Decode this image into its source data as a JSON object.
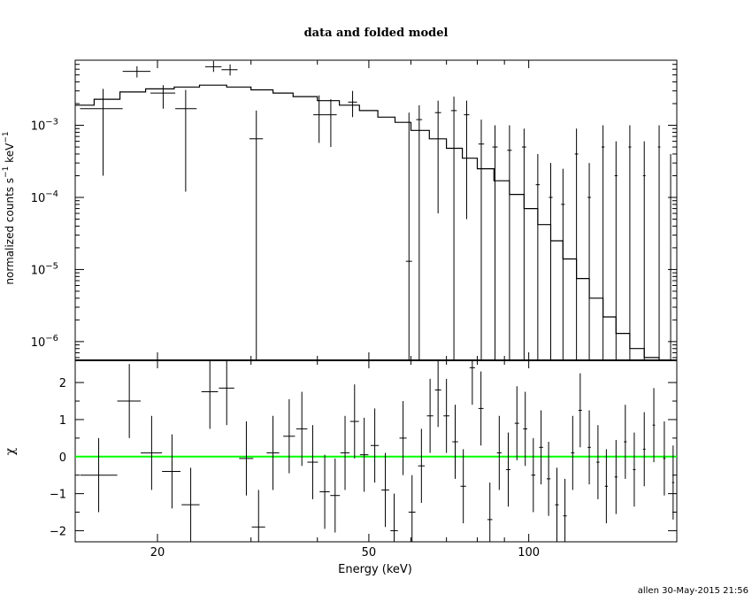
{
  "title": "data and folded model",
  "footer": "allen 30-May-2015 21:56",
  "chart_data": [
    {
      "type": "scatter",
      "subtype": "spectrum-with-errorbars-and-step-model",
      "title": "data and folded model",
      "ylabel": "normalized counts s^-1 keV^-1",
      "ylabel_parts": {
        "main": "normalized counts s",
        "exp1": "−1",
        "unit": " keV",
        "exp2": "−1"
      },
      "xlabel": "Energy (keV)",
      "xscale": "log",
      "yscale": "log",
      "xlim": [
        14,
        190
      ],
      "ylim": [
        5.5e-07,
        0.008
      ],
      "x_ticklabels": [
        {
          "value": 20,
          "label": "20"
        },
        {
          "value": 50,
          "label": "50"
        },
        {
          "value": 100,
          "label": "100"
        }
      ],
      "y_ticklabels": [
        {
          "value": 0.001,
          "base": "10",
          "exp": "−3"
        },
        {
          "value": 0.0001,
          "base": "10",
          "exp": "−4"
        },
        {
          "value": 1e-05,
          "base": "10",
          "exp": "−5"
        },
        {
          "value": 1e-06,
          "base": "10",
          "exp": "−6"
        }
      ],
      "data_color": "#000000",
      "model_color": "#000000",
      "data": [
        {
          "x": 15.8,
          "xlo": 14.3,
          "xhi": 17.2,
          "y": 0.0017,
          "ylo": 0.0002,
          "yhi": 0.0032
        },
        {
          "x": 18.3,
          "xlo": 17.2,
          "xhi": 19.4,
          "y": 0.0056,
          "ylo": 0.0046,
          "yhi": 0.0066
        },
        {
          "x": 20.5,
          "xlo": 19.4,
          "xhi": 21.6,
          "y": 0.0028,
          "ylo": 0.0017,
          "yhi": 0.0036
        },
        {
          "x": 22.6,
          "xlo": 21.6,
          "xhi": 23.7,
          "y": 0.0017,
          "ylo": 0.00012,
          "yhi": 0.0031
        },
        {
          "x": 25.5,
          "xlo": 24.6,
          "xhi": 26.4,
          "y": 0.0065,
          "ylo": 0.0055,
          "yhi": 0.0078
        },
        {
          "x": 27.4,
          "xlo": 26.4,
          "xhi": 28.3,
          "y": 0.0059,
          "ylo": 0.0049,
          "yhi": 0.007
        },
        {
          "x": 30.7,
          "xlo": 29.8,
          "xhi": 31.6,
          "y": 0.00065,
          "ylo": 5.5e-07,
          "yhi": 0.0016
        },
        {
          "x": 40.3,
          "xlo": 39.3,
          "xhi": 41.3,
          "y": 0.0014,
          "ylo": 0.00057,
          "yhi": 0.0026
        },
        {
          "x": 42.4,
          "xlo": 41.3,
          "xhi": 43.5,
          "y": 0.0014,
          "ylo": 0.0005,
          "yhi": 0.0023
        },
        {
          "x": 46.6,
          "xlo": 45.7,
          "xhi": 47.5,
          "y": 0.0021,
          "ylo": 0.0013,
          "yhi": 0.003
        },
        {
          "x": 59.5,
          "xlo": 58.7,
          "xhi": 60.3,
          "y": 1.3e-05,
          "ylo": 5.5e-07,
          "yhi": 0.0015
        },
        {
          "x": 62.2,
          "xlo": 61.4,
          "xhi": 63,
          "y": 0.0012,
          "ylo": 5.5e-07,
          "yhi": 0.0019
        },
        {
          "x": 67.5,
          "xlo": 66.6,
          "xhi": 68.4,
          "y": 0.0015,
          "ylo": 6e-05,
          "yhi": 0.0022
        },
        {
          "x": 72.3,
          "xlo": 71.4,
          "xhi": 73.2,
          "y": 0.0016,
          "ylo": 5.5e-07,
          "yhi": 0.0025
        },
        {
          "x": 76.4,
          "xlo": 75.5,
          "xhi": 77.3,
          "y": 0.0014,
          "ylo": 5e-05,
          "yhi": 0.0022
        },
        {
          "x": 81.4,
          "xlo": 80.4,
          "xhi": 82.4,
          "y": 0.00055,
          "ylo": 5.5e-07,
          "yhi": 0.0012
        },
        {
          "x": 86.4,
          "xlo": 85.4,
          "xhi": 87.4,
          "y": 0.0005,
          "ylo": 5.5e-07,
          "yhi": 0.001
        },
        {
          "x": 92,
          "xlo": 91.1,
          "xhi": 92.9,
          "y": 0.00045,
          "ylo": 5.5e-07,
          "yhi": 0.001
        },
        {
          "x": 98,
          "xlo": 97.1,
          "xhi": 98.9,
          "y": 0.0005,
          "ylo": 5.5e-07,
          "yhi": 0.0009
        },
        {
          "x": 104,
          "xlo": 103.1,
          "xhi": 104.9,
          "y": 0.00015,
          "ylo": 5.5e-07,
          "yhi": 0.0004
        },
        {
          "x": 110,
          "xlo": 109.1,
          "xhi": 110.9,
          "y": 0.0001,
          "ylo": 5.5e-07,
          "yhi": 0.0003
        },
        {
          "x": 116,
          "xlo": 115.1,
          "xhi": 116.9,
          "y": 8e-05,
          "ylo": 5.5e-07,
          "yhi": 0.00025
        },
        {
          "x": 123,
          "xlo": 122.1,
          "xhi": 123.9,
          "y": 0.0004,
          "ylo": 5.5e-07,
          "yhi": 0.0009
        },
        {
          "x": 130,
          "xlo": 129.1,
          "xhi": 130.9,
          "y": 0.0001,
          "ylo": 5.5e-07,
          "yhi": 0.0003
        },
        {
          "x": 138,
          "xlo": 137.1,
          "xhi": 138.9,
          "y": 0.0005,
          "ylo": 5.5e-07,
          "yhi": 0.001
        },
        {
          "x": 146,
          "xlo": 145.1,
          "xhi": 146.9,
          "y": 0.0002,
          "ylo": 5.5e-07,
          "yhi": 0.0006
        },
        {
          "x": 155,
          "xlo": 154.1,
          "xhi": 155.9,
          "y": 0.0005,
          "ylo": 5.5e-07,
          "yhi": 0.001
        },
        {
          "x": 165,
          "xlo": 164.1,
          "xhi": 165.9,
          "y": 0.0002,
          "ylo": 5.5e-07,
          "yhi": 0.0006
        },
        {
          "x": 176,
          "xlo": 175.1,
          "xhi": 176.9,
          "y": 0.0005,
          "ylo": 5.5e-07,
          "yhi": 0.001
        },
        {
          "x": 185,
          "xlo": 184.1,
          "xhi": 185.9,
          "y": 0.0001,
          "ylo": 5.5e-07,
          "yhi": 0.0004
        }
      ],
      "model_steps": [
        {
          "x0": 14,
          "x1": 15.2,
          "y": 0.0019
        },
        {
          "x0": 15.2,
          "x1": 17,
          "y": 0.0023
        },
        {
          "x0": 17,
          "x1": 19,
          "y": 0.0029
        },
        {
          "x0": 19,
          "x1": 21.5,
          "y": 0.0032
        },
        {
          "x0": 21.5,
          "x1": 24,
          "y": 0.0034
        },
        {
          "x0": 24,
          "x1": 27,
          "y": 0.0036
        },
        {
          "x0": 27,
          "x1": 30,
          "y": 0.0034
        },
        {
          "x0": 30,
          "x1": 33,
          "y": 0.0031
        },
        {
          "x0": 33,
          "x1": 36,
          "y": 0.0028
        },
        {
          "x0": 36,
          "x1": 40,
          "y": 0.0025
        },
        {
          "x0": 40,
          "x1": 44,
          "y": 0.0022
        },
        {
          "x0": 44,
          "x1": 48,
          "y": 0.0019
        },
        {
          "x0": 48,
          "x1": 52,
          "y": 0.0016
        },
        {
          "x0": 52,
          "x1": 56,
          "y": 0.0013
        },
        {
          "x0": 56,
          "x1": 60,
          "y": 0.0011
        },
        {
          "x0": 60,
          "x1": 65,
          "y": 0.00085
        },
        {
          "x0": 65,
          "x1": 70,
          "y": 0.00065
        },
        {
          "x0": 70,
          "x1": 75,
          "y": 0.00048
        },
        {
          "x0": 75,
          "x1": 80,
          "y": 0.00035
        },
        {
          "x0": 80,
          "x1": 86,
          "y": 0.00025
        },
        {
          "x0": 86,
          "x1": 92,
          "y": 0.00017
        },
        {
          "x0": 92,
          "x1": 98,
          "y": 0.00011
        },
        {
          "x0": 98,
          "x1": 104,
          "y": 7e-05
        },
        {
          "x0": 104,
          "x1": 110,
          "y": 4.2e-05
        },
        {
          "x0": 110,
          "x1": 116,
          "y": 2.5e-05
        },
        {
          "x0": 116,
          "x1": 123,
          "y": 1.4e-05
        },
        {
          "x0": 123,
          "x1": 130,
          "y": 7.5e-06
        },
        {
          "x0": 130,
          "x1": 138,
          "y": 4e-06
        },
        {
          "x0": 138,
          "x1": 146,
          "y": 2.2e-06
        },
        {
          "x0": 146,
          "x1": 155,
          "y": 1.3e-06
        },
        {
          "x0": 155,
          "x1": 165,
          "y": 8e-07
        },
        {
          "x0": 165,
          "x1": 176,
          "y": 6e-07
        },
        {
          "x0": 176,
          "x1": 190,
          "y": 5.5e-07
        }
      ]
    },
    {
      "type": "scatter",
      "subtype": "residuals-with-errorbars",
      "ylabel": "χ",
      "xlabel": "Energy (keV)",
      "xscale": "log",
      "xlim": [
        14,
        190
      ],
      "ylim": [
        -2.3,
        2.6
      ],
      "y_ticklabels": [
        {
          "value": 2,
          "label": "2"
        },
        {
          "value": 1,
          "label": "1"
        },
        {
          "value": 0,
          "label": "0"
        },
        {
          "value": -1,
          "label": "−1"
        },
        {
          "value": -2,
          "label": "−2"
        }
      ],
      "x_ticklabels": [
        {
          "value": 20,
          "label": "20"
        },
        {
          "value": 50,
          "label": "50"
        },
        {
          "value": 100,
          "label": "100"
        }
      ],
      "zero_line": {
        "value": 0,
        "color": "#00ff00"
      },
      "data_color": "#000000",
      "data": [
        {
          "x": 15.5,
          "xlo": 14.3,
          "xhi": 16.8,
          "y": -0.5,
          "ylo": -1.5,
          "yhi": 0.5
        },
        {
          "x": 17.7,
          "xlo": 16.8,
          "xhi": 18.6,
          "y": 1.5,
          "ylo": 0.5,
          "yhi": 2.5
        },
        {
          "x": 19.5,
          "xlo": 18.6,
          "xhi": 20.4,
          "y": 0.1,
          "ylo": -0.9,
          "yhi": 1.1
        },
        {
          "x": 21.3,
          "xlo": 20.4,
          "xhi": 22.1,
          "y": -0.4,
          "ylo": -1.4,
          "yhi": 0.6
        },
        {
          "x": 23.1,
          "xlo": 22.2,
          "xhi": 24,
          "y": -1.3,
          "ylo": -2.3,
          "yhi": -0.3
        },
        {
          "x": 25.1,
          "xlo": 24.2,
          "xhi": 26,
          "y": 1.75,
          "ylo": 0.75,
          "yhi": 2.6
        },
        {
          "x": 27,
          "xlo": 26.1,
          "xhi": 27.9,
          "y": 1.85,
          "ylo": 0.85,
          "yhi": 2.6
        },
        {
          "x": 29.4,
          "xlo": 28.5,
          "xhi": 30.3,
          "y": -0.05,
          "ylo": -1.05,
          "yhi": 0.95
        },
        {
          "x": 31,
          "xlo": 30.1,
          "xhi": 31.9,
          "y": -1.9,
          "ylo": -2.3,
          "yhi": -0.9
        },
        {
          "x": 33,
          "xlo": 32.1,
          "xhi": 33.9,
          "y": 0.1,
          "ylo": -0.9,
          "yhi": 1.1
        },
        {
          "x": 35.4,
          "xlo": 34.5,
          "xhi": 36.3,
          "y": 0.55,
          "ylo": -0.45,
          "yhi": 1.55
        },
        {
          "x": 37.4,
          "xlo": 36.5,
          "xhi": 38.3,
          "y": 0.75,
          "ylo": -0.25,
          "yhi": 1.75
        },
        {
          "x": 39.2,
          "xlo": 38.3,
          "xhi": 40.1,
          "y": -0.15,
          "ylo": -1.15,
          "yhi": 0.85
        },
        {
          "x": 41.3,
          "xlo": 40.4,
          "xhi": 42.2,
          "y": -0.95,
          "ylo": -1.95,
          "yhi": 0.05
        },
        {
          "x": 43.2,
          "xlo": 42.3,
          "xhi": 44.1,
          "y": -1.05,
          "ylo": -2.05,
          "yhi": -0.05
        },
        {
          "x": 45.1,
          "xlo": 44.2,
          "xhi": 46,
          "y": 0.1,
          "ylo": -0.9,
          "yhi": 1.1
        },
        {
          "x": 47,
          "xlo": 46.1,
          "xhi": 47.9,
          "y": 0.95,
          "ylo": -0.05,
          "yhi": 1.95
        },
        {
          "x": 49,
          "xlo": 48.1,
          "xhi": 49.9,
          "y": 0.05,
          "ylo": -0.95,
          "yhi": 1.05
        },
        {
          "x": 51.3,
          "xlo": 50.4,
          "xhi": 52.2,
          "y": 0.3,
          "ylo": -0.7,
          "yhi": 1.3
        },
        {
          "x": 53.7,
          "xlo": 52.8,
          "xhi": 54.6,
          "y": -0.9,
          "ylo": -1.9,
          "yhi": 0.1
        },
        {
          "x": 55.8,
          "xlo": 54.9,
          "xhi": 56.7,
          "y": -2,
          "ylo": -2.3,
          "yhi": -1
        },
        {
          "x": 58,
          "xlo": 57.1,
          "xhi": 58.9,
          "y": 0.5,
          "ylo": -0.5,
          "yhi": 1.5
        },
        {
          "x": 60.3,
          "xlo": 59.4,
          "xhi": 61.2,
          "y": -1.5,
          "ylo": -2.3,
          "yhi": -0.5
        },
        {
          "x": 62.8,
          "xlo": 61.9,
          "xhi": 63.7,
          "y": -0.25,
          "ylo": -1.25,
          "yhi": 0.75
        },
        {
          "x": 65.2,
          "xlo": 64.3,
          "xhi": 66.1,
          "y": 1.1,
          "ylo": 0.1,
          "yhi": 2.1
        },
        {
          "x": 67.5,
          "xlo": 66.6,
          "xhi": 68.4,
          "y": 1.8,
          "ylo": 0.8,
          "yhi": 2.6
        },
        {
          "x": 70,
          "xlo": 69.1,
          "xhi": 70.9,
          "y": 1.1,
          "ylo": 0.1,
          "yhi": 2.1
        },
        {
          "x": 72.7,
          "xlo": 71.8,
          "xhi": 73.6,
          "y": 0.4,
          "ylo": -0.6,
          "yhi": 1.4
        },
        {
          "x": 75.3,
          "xlo": 74.4,
          "xhi": 76.2,
          "y": -0.8,
          "ylo": -1.8,
          "yhi": 0.2
        },
        {
          "x": 78.3,
          "xlo": 77.4,
          "xhi": 79.2,
          "y": 2.4,
          "ylo": 1.4,
          "yhi": 2.6
        },
        {
          "x": 81.3,
          "xlo": 80.4,
          "xhi": 82.2,
          "y": 1.3,
          "ylo": 0.3,
          "yhi": 2.3
        },
        {
          "x": 84.5,
          "xlo": 83.6,
          "xhi": 85.4,
          "y": -1.7,
          "ylo": -2.3,
          "yhi": -0.7
        },
        {
          "x": 88,
          "xlo": 87.1,
          "xhi": 88.9,
          "y": 0.1,
          "ylo": -0.9,
          "yhi": 1.1
        },
        {
          "x": 91.5,
          "xlo": 90.6,
          "xhi": 92.4,
          "y": -0.35,
          "ylo": -1.35,
          "yhi": 0.65
        },
        {
          "x": 95,
          "xlo": 94.1,
          "xhi": 95.9,
          "y": 0.9,
          "ylo": -0.1,
          "yhi": 1.9
        },
        {
          "x": 98.5,
          "xlo": 97.6,
          "xhi": 99.4,
          "y": 0.75,
          "ylo": -0.25,
          "yhi": 1.75
        },
        {
          "x": 102,
          "xlo": 101.1,
          "xhi": 102.9,
          "y": -0.5,
          "ylo": -1.5,
          "yhi": 0.5
        },
        {
          "x": 105.5,
          "xlo": 104.6,
          "xhi": 106.4,
          "y": 0.25,
          "ylo": -0.75,
          "yhi": 1.25
        },
        {
          "x": 109,
          "xlo": 108.1,
          "xhi": 109.9,
          "y": -0.6,
          "ylo": -1.6,
          "yhi": 0.4
        },
        {
          "x": 113,
          "xlo": 112.1,
          "xhi": 113.9,
          "y": -1.3,
          "ylo": -2.3,
          "yhi": -0.3
        },
        {
          "x": 117,
          "xlo": 116.1,
          "xhi": 117.9,
          "y": -1.6,
          "ylo": -2.3,
          "yhi": -0.6
        },
        {
          "x": 121,
          "xlo": 120.1,
          "xhi": 121.9,
          "y": 0.1,
          "ylo": -0.9,
          "yhi": 1.1
        },
        {
          "x": 125,
          "xlo": 124.1,
          "xhi": 125.9,
          "y": 1.25,
          "ylo": 0.25,
          "yhi": 2.25
        },
        {
          "x": 130,
          "xlo": 129.1,
          "xhi": 130.9,
          "y": 0.25,
          "ylo": -0.75,
          "yhi": 1.25
        },
        {
          "x": 135,
          "xlo": 134.1,
          "xhi": 135.9,
          "y": -0.15,
          "ylo": -1.15,
          "yhi": 0.85
        },
        {
          "x": 140,
          "xlo": 139.1,
          "xhi": 140.9,
          "y": -0.8,
          "ylo": -1.8,
          "yhi": 0.2
        },
        {
          "x": 146,
          "xlo": 145.1,
          "xhi": 146.9,
          "y": -0.55,
          "ylo": -1.55,
          "yhi": 0.45
        },
        {
          "x": 152,
          "xlo": 151.1,
          "xhi": 152.9,
          "y": 0.4,
          "ylo": -0.6,
          "yhi": 1.4
        },
        {
          "x": 158,
          "xlo": 157.1,
          "xhi": 158.9,
          "y": -0.35,
          "ylo": -1.35,
          "yhi": 0.65
        },
        {
          "x": 165,
          "xlo": 164.1,
          "xhi": 165.9,
          "y": 0.2,
          "ylo": -0.8,
          "yhi": 1.2
        },
        {
          "x": 172,
          "xlo": 171.1,
          "xhi": 172.9,
          "y": 0.85,
          "ylo": -0.15,
          "yhi": 1.85
        },
        {
          "x": 180,
          "xlo": 179.1,
          "xhi": 180.9,
          "y": -0.05,
          "ylo": -1.05,
          "yhi": 0.95
        },
        {
          "x": 187,
          "xlo": 186.1,
          "xhi": 187.9,
          "y": -0.7,
          "ylo": -1.7,
          "yhi": 0.3
        }
      ]
    }
  ]
}
